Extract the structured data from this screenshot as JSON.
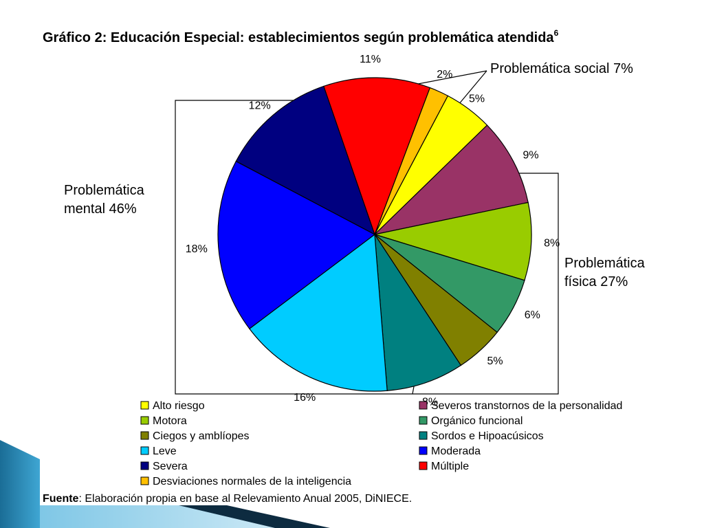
{
  "chart_data": {
    "type": "pie",
    "title": "Gráfico 2: Educación Especial: establecimientos según problemática atendida",
    "title_footnote": "6",
    "slices": [
      {
        "label": "Desviaciones normales de la inteligencia",
        "value": 2,
        "value_label": "2%",
        "color": "#FFC000"
      },
      {
        "label": "Alto riesgo",
        "value": 5,
        "value_label": "5%",
        "color": "#FFFF00"
      },
      {
        "label": "Severos transtornos de la personalidad",
        "value": 9,
        "value_label": "9%",
        "color": "#993366"
      },
      {
        "label": "Motora",
        "value": 8,
        "value_label": "8%",
        "color": "#99CC00"
      },
      {
        "label": "Orgánico funcional",
        "value": 6,
        "value_label": "6%",
        "color": "#339966"
      },
      {
        "label": "Ciegos y amblíopes",
        "value": 5,
        "value_label": "5%",
        "color": "#808000"
      },
      {
        "label": "Sordos e Hipoacúsicos",
        "value": 8,
        "value_label": "8%",
        "color": "#008080"
      },
      {
        "label": "Leve",
        "value": 16,
        "value_label": "16%",
        "color": "#00CCFF"
      },
      {
        "label": "Moderada",
        "value": 18,
        "value_label": "18%",
        "color": "#0000FF"
      },
      {
        "label": "Severa",
        "value": 12,
        "value_label": "12%",
        "color": "#000080"
      },
      {
        "label": "Múltiple",
        "value": 11,
        "value_label": "11%",
        "color": "#FF0000"
      }
    ],
    "legend": [
      {
        "label": "Alto riesgo",
        "color": "#FFFF00"
      },
      {
        "label": "Severos transtornos de la personalidad",
        "color": "#993366"
      },
      {
        "label": "Motora",
        "color": "#99CC00"
      },
      {
        "label": "Orgánico funcional",
        "color": "#339966"
      },
      {
        "label": "Ciegos y amblíopes",
        "color": "#808000"
      },
      {
        "label": "Sordos e Hipoacúsicos",
        "color": "#008080"
      },
      {
        "label": "Leve",
        "color": "#00CCFF"
      },
      {
        "label": "Moderada",
        "color": "#0000FF"
      },
      {
        "label": "Severa",
        "color": "#000080"
      },
      {
        "label": "Múltiple",
        "color": "#FF0000"
      },
      {
        "label": "Desviaciones normales de la inteligencia",
        "color": "#FFC000"
      }
    ],
    "legend_placement": "bottom",
    "group_annotations": {
      "social": "Problemática social 7%",
      "mental_line1": "Problemática",
      "mental_line2": "mental 46%",
      "fisica_line1": "Problemática",
      "fisica_line2": "física 27%"
    }
  },
  "source": {
    "bold": "Fuente",
    "text": ": Elaboración propia en base al Relevamiento Anual 2005, DiNIECE."
  }
}
